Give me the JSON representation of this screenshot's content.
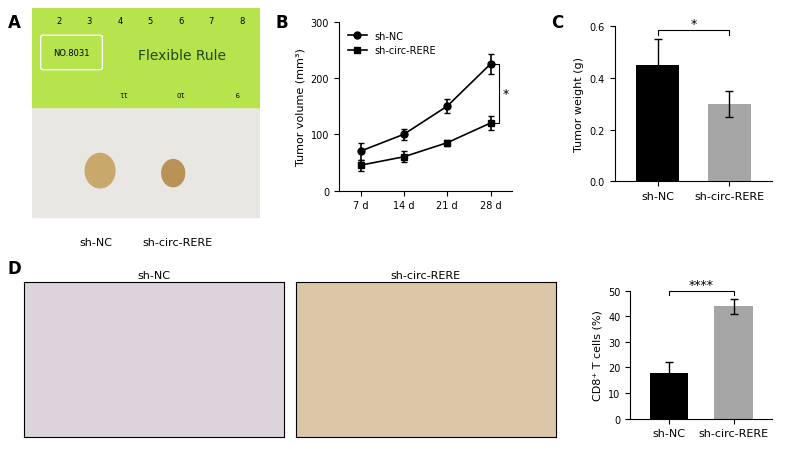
{
  "panel_labels": [
    "A",
    "B",
    "C",
    "D"
  ],
  "photo": {
    "ruler_texts": [
      "NO.8031",
      "Flexible Rule"
    ],
    "ruler_numbers": [
      "2",
      "3",
      "4",
      "5",
      "6",
      "7",
      "8"
    ],
    "ruler_mirrored_numbers": [
      "11",
      "10",
      "9"
    ],
    "captions": [
      "sh-NC",
      "sh-circ-RERE"
    ]
  },
  "micrographs": {
    "titles": [
      "sh-NC",
      "sh-circ-RERE"
    ]
  },
  "chart_data": [
    {
      "type": "line",
      "categories": [
        "7 d",
        "14 d",
        "21 d",
        "28 d"
      ],
      "ylabel": "Tumor volume (mm³)",
      "ylim": [
        0,
        300
      ],
      "yticks": [
        0,
        100,
        200,
        300
      ],
      "legend": "upper left",
      "annotation": "*",
      "series": [
        {
          "name": "sh-NC",
          "color": "#000000",
          "marker": "circle",
          "values": [
            70,
            100,
            150,
            225
          ],
          "errors": [
            15,
            10,
            12,
            18
          ]
        },
        {
          "name": "sh-circ-RERE",
          "color": "#000000",
          "marker": "square",
          "values": [
            45,
            60,
            85,
            120
          ],
          "errors": [
            10,
            10,
            5,
            12
          ]
        }
      ]
    },
    {
      "type": "bar",
      "categories": [
        "sh-NC",
        "sh-circ-RERE"
      ],
      "ylabel": "Tumor weight (g)",
      "values": [
        0.45,
        0.3
      ],
      "errors": [
        0.1,
        0.05
      ],
      "colors": [
        "#000000",
        "#a6a6a6"
      ],
      "ylim": [
        0,
        0.6
      ],
      "yticks": [
        {
          "value": 0,
          "label": "0.0"
        },
        {
          "value": 0.2,
          "label": "0.2"
        },
        {
          "value": 0.4,
          "label": "0.4"
        },
        {
          "value": 0.6,
          "label": "0.6"
        }
      ],
      "annotation": "*"
    },
    {
      "type": "bar",
      "categories": [
        "sh-NC",
        "sh-circ-RERE"
      ],
      "ylabel": "CD8⁺ T cells (%)",
      "values": [
        18,
        44
      ],
      "errors": [
        4,
        3
      ],
      "colors": [
        "#000000",
        "#a6a6a6"
      ],
      "ylim": [
        0,
        50
      ],
      "yticks": [
        0,
        10,
        20,
        30,
        40,
        50
      ],
      "annotation": "****"
    }
  ]
}
